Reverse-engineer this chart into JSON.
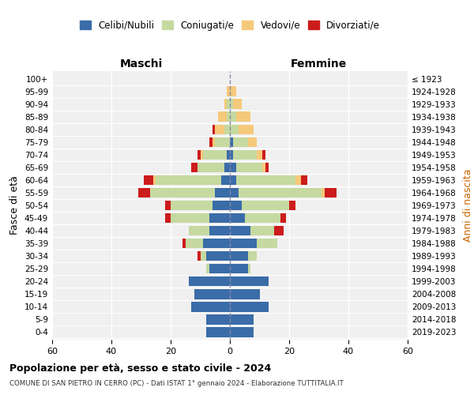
{
  "age_groups": [
    "0-4",
    "5-9",
    "10-14",
    "15-19",
    "20-24",
    "25-29",
    "30-34",
    "35-39",
    "40-44",
    "45-49",
    "50-54",
    "55-59",
    "60-64",
    "65-69",
    "70-74",
    "75-79",
    "80-84",
    "85-89",
    "90-94",
    "95-99",
    "100+"
  ],
  "birth_years": [
    "2019-2023",
    "2014-2018",
    "2009-2013",
    "2004-2008",
    "1999-2003",
    "1994-1998",
    "1989-1993",
    "1984-1988",
    "1979-1983",
    "1974-1978",
    "1969-1973",
    "1964-1968",
    "1959-1963",
    "1954-1958",
    "1949-1953",
    "1944-1948",
    "1939-1943",
    "1934-1938",
    "1929-1933",
    "1924-1928",
    "≤ 1923"
  ],
  "colors": {
    "celibi": "#3a6ca8",
    "coniugati": "#c5d9a0",
    "vedovi": "#f5c97a",
    "divorziati": "#cc1c1c"
  },
  "males": {
    "celibi": [
      8,
      8,
      13,
      12,
      14,
      7,
      8,
      9,
      7,
      7,
      6,
      5,
      3,
      2,
      1,
      0,
      0,
      0,
      0,
      0,
      0
    ],
    "coniugati": [
      0,
      0,
      0,
      0,
      0,
      1,
      2,
      6,
      7,
      13,
      14,
      22,
      22,
      9,
      8,
      5,
      2,
      1,
      1,
      0,
      0
    ],
    "vedovi": [
      0,
      0,
      0,
      0,
      0,
      0,
      0,
      0,
      0,
      0,
      0,
      0,
      1,
      0,
      1,
      1,
      3,
      3,
      1,
      1,
      0
    ],
    "divorziati": [
      0,
      0,
      0,
      0,
      0,
      0,
      1,
      1,
      0,
      2,
      2,
      4,
      3,
      2,
      1,
      1,
      1,
      0,
      0,
      0,
      0
    ]
  },
  "females": {
    "nubili": [
      8,
      8,
      13,
      10,
      13,
      6,
      6,
      9,
      7,
      5,
      4,
      3,
      2,
      2,
      1,
      1,
      0,
      0,
      0,
      0,
      0
    ],
    "coniugate": [
      0,
      0,
      0,
      0,
      0,
      1,
      3,
      7,
      8,
      12,
      16,
      28,
      20,
      9,
      8,
      5,
      3,
      2,
      1,
      0,
      0
    ],
    "vedove": [
      0,
      0,
      0,
      0,
      0,
      0,
      0,
      0,
      0,
      0,
      0,
      1,
      2,
      1,
      2,
      3,
      5,
      5,
      3,
      2,
      0
    ],
    "divorziate": [
      0,
      0,
      0,
      0,
      0,
      0,
      0,
      0,
      3,
      2,
      2,
      4,
      2,
      1,
      1,
      0,
      0,
      0,
      0,
      0,
      0
    ]
  },
  "title": "Popolazione per età, sesso e stato civile - 2024",
  "subtitle": "COMUNE DI SAN PIETRO IN CERRO (PC) - Dati ISTAT 1° gennaio 2024 - Elaborazione TUTTITALIA.IT",
  "xlabel_left": "Maschi",
  "xlabel_right": "Femmine",
  "ylabel_left": "Fasce di età",
  "ylabel_right": "Anni di nascita",
  "xlim": 60,
  "bg_color": "#f0f0f0",
  "legend_labels": [
    "Celibi/Nubili",
    "Coniugati/e",
    "Vedovi/e",
    "Divorziati/e"
  ]
}
